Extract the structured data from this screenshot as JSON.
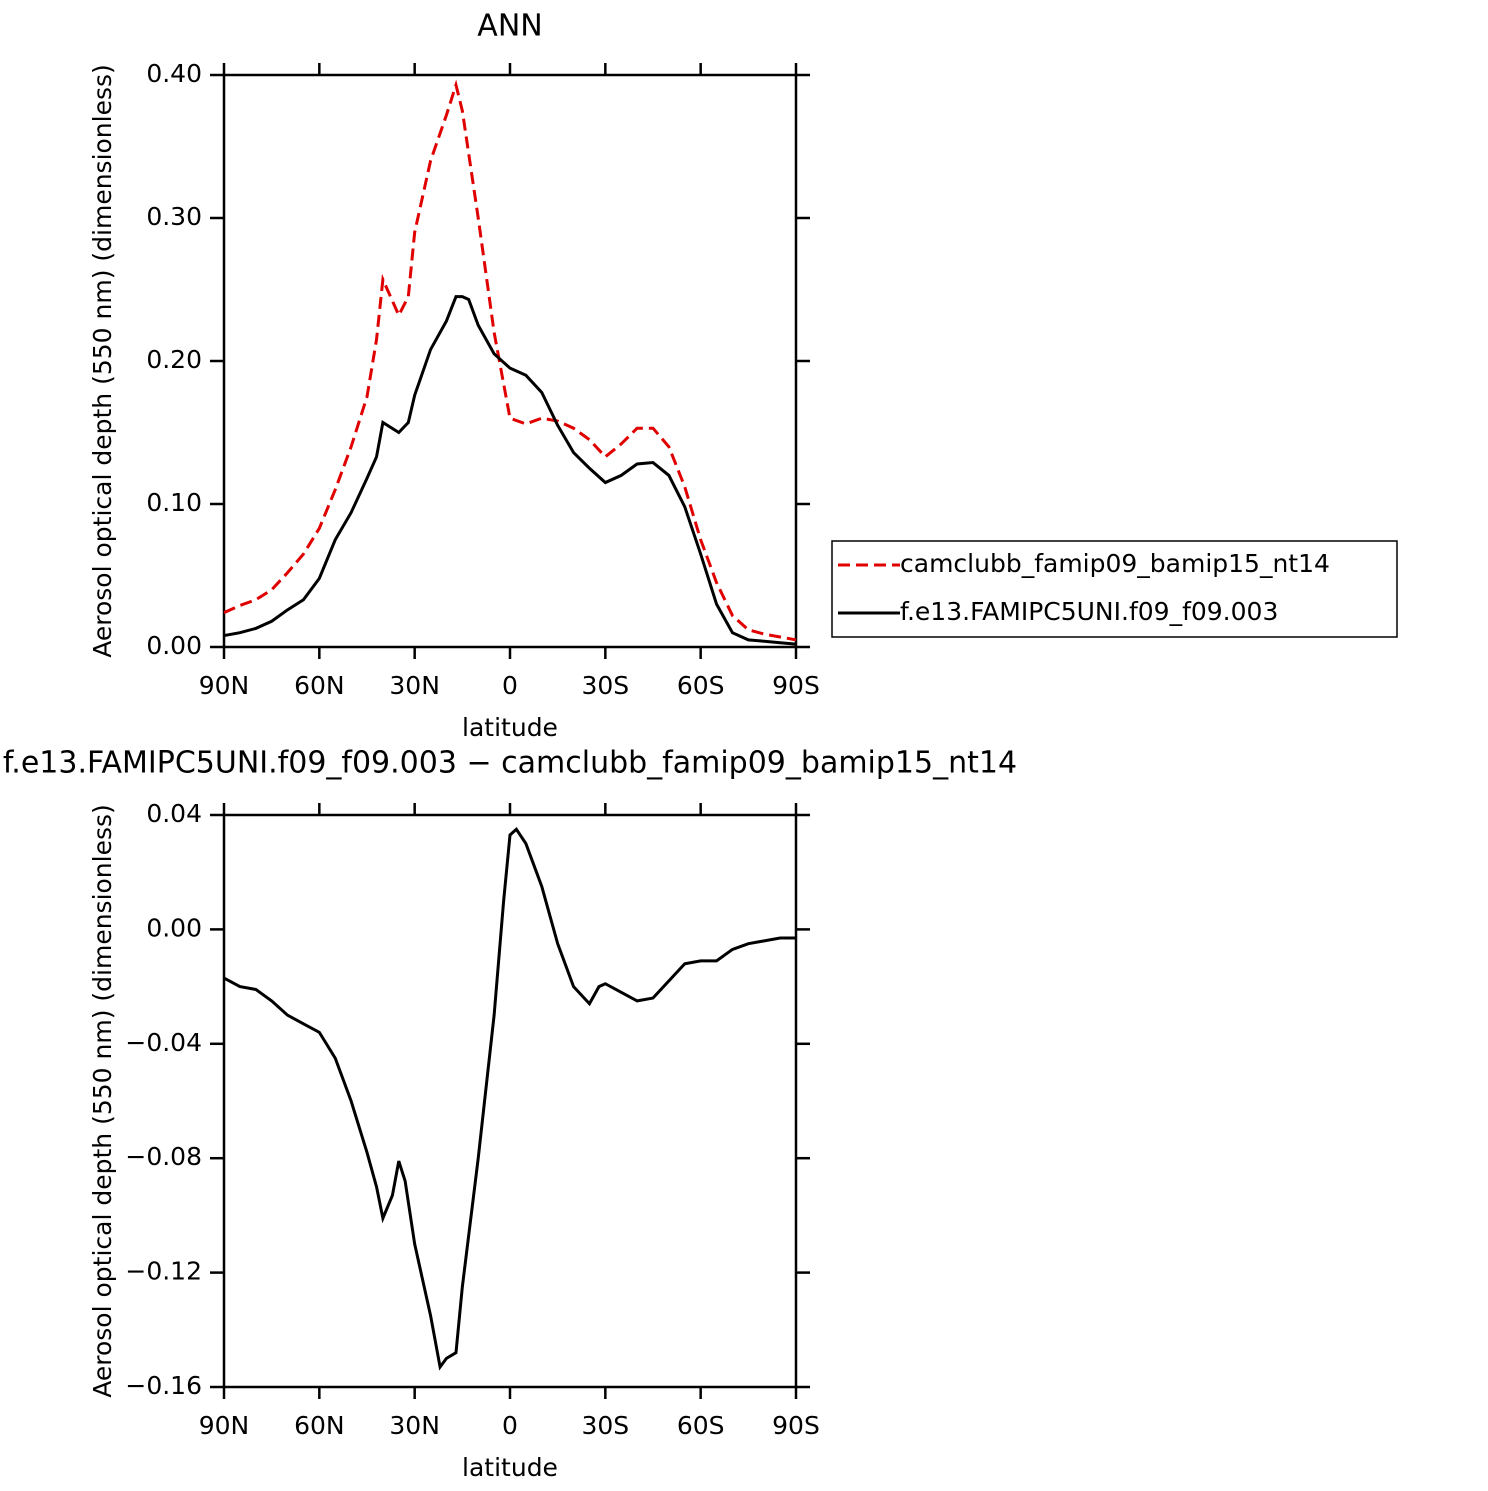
{
  "chart_data": [
    {
      "type": "line",
      "title": "ANN",
      "x_label": "latitude",
      "y_label": "Aerosol optical depth (550 nm) (dimensionless)",
      "x": [
        90,
        85,
        80,
        75,
        70,
        65,
        60,
        55,
        50,
        45,
        42,
        40,
        35,
        32,
        30,
        25,
        20,
        17,
        15,
        13,
        10,
        5,
        0,
        -5,
        -10,
        -15,
        -20,
        -25,
        -30,
        -35,
        -40,
        -45,
        -50,
        -55,
        -60,
        -65,
        -70,
        -75,
        -80,
        -85,
        -90
      ],
      "series": [
        {
          "name": "camclubb_famip09_bamip15_nt14",
          "color": "#e00000",
          "line_style": "dashed",
          "values": [
            0.024,
            0.029,
            0.033,
            0.04,
            0.052,
            0.065,
            0.083,
            0.11,
            0.14,
            0.175,
            0.215,
            0.257,
            0.232,
            0.245,
            0.29,
            0.34,
            0.372,
            0.393,
            0.375,
            0.345,
            0.3,
            0.22,
            0.16,
            0.156,
            0.16,
            0.158,
            0.153,
            0.145,
            0.133,
            0.142,
            0.153,
            0.153,
            0.14,
            0.112,
            0.075,
            0.045,
            0.022,
            0.012,
            0.009,
            0.007,
            0.005
          ]
        },
        {
          "name": "f.e13.FAMIPC5UNI.f09_f09.003",
          "color": "#000000",
          "line_style": "solid",
          "values": [
            0.008,
            0.01,
            0.013,
            0.018,
            0.026,
            0.033,
            0.048,
            0.075,
            0.094,
            0.118,
            0.133,
            0.157,
            0.15,
            0.157,
            0.176,
            0.208,
            0.228,
            0.245,
            0.245,
            0.243,
            0.225,
            0.205,
            0.195,
            0.19,
            0.178,
            0.155,
            0.136,
            0.125,
            0.115,
            0.12,
            0.128,
            0.129,
            0.12,
            0.098,
            0.065,
            0.03,
            0.01,
            0.005,
            0.004,
            0.003,
            0.002
          ]
        }
      ],
      "xlim": [
        90,
        -90
      ],
      "xticks": [
        {
          "value": 90,
          "label": "90N"
        },
        {
          "value": 60,
          "label": "60N"
        },
        {
          "value": 30,
          "label": "30N"
        },
        0,
        {
          "value": -30,
          "label": "30S"
        },
        {
          "value": -60,
          "label": "60S"
        },
        {
          "value": -90,
          "label": "90S"
        }
      ],
      "ylim": [
        0,
        0.4
      ],
      "yticks": [
        {
          "value": 0,
          "label": "0.00"
        },
        {
          "value": 0.1,
          "label": "0.10"
        },
        {
          "value": 0.2,
          "label": "0.20"
        },
        {
          "value": 0.3,
          "label": "0.30"
        },
        {
          "value": 0.4,
          "label": "0.40"
        }
      ],
      "legend": "right"
    },
    {
      "type": "line",
      "title": "f.e13.FAMIPC5UNI.f09_f09.003 − camclubb_famip09_bamip15_nt14",
      "x_label": "latitude",
      "y_label": "Aerosol optical depth (550 nm) (dimensionless)",
      "x": [
        90,
        85,
        80,
        75,
        70,
        65,
        60,
        55,
        50,
        45,
        42,
        40,
        37,
        35,
        33,
        30,
        27,
        25,
        22,
        20,
        17,
        15,
        10,
        5,
        2,
        0,
        -2,
        -5,
        -10,
        -15,
        -20,
        -25,
        -28,
        -30,
        -35,
        -40,
        -45,
        -50,
        -55,
        -60,
        -65,
        -70,
        -75,
        -80,
        -85,
        -90
      ],
      "series": [
        {
          "color": "#000000",
          "line_style": "solid",
          "values": [
            -0.017,
            -0.02,
            -0.021,
            -0.025,
            -0.03,
            -0.033,
            -0.036,
            -0.045,
            -0.06,
            -0.078,
            -0.09,
            -0.101,
            -0.093,
            -0.081,
            -0.088,
            -0.11,
            -0.125,
            -0.135,
            -0.153,
            -0.15,
            -0.148,
            -0.125,
            -0.08,
            -0.03,
            0.01,
            0.033,
            0.035,
            0.03,
            0.015,
            -0.005,
            -0.02,
            -0.026,
            -0.02,
            -0.019,
            -0.022,
            -0.025,
            -0.024,
            -0.018,
            -0.012,
            -0.011,
            -0.011,
            -0.007,
            -0.005,
            -0.004,
            -0.003,
            -0.003
          ]
        }
      ],
      "xlim": [
        90,
        -90
      ],
      "xticks": [
        {
          "value": 90,
          "label": "90N"
        },
        {
          "value": 60,
          "label": "60N"
        },
        {
          "value": 30,
          "label": "30N"
        },
        0,
        {
          "value": -30,
          "label": "30S"
        },
        {
          "value": -60,
          "label": "60S"
        },
        {
          "value": -90,
          "label": "90S"
        }
      ],
      "ylim": [
        -0.16,
        0.04
      ],
      "yticks": [
        {
          "value": -0.16,
          "label": "−0.16"
        },
        {
          "value": -0.12,
          "label": "−0.12"
        },
        {
          "value": -0.08,
          "label": "−0.08"
        },
        {
          "value": -0.04,
          "label": "−0.04"
        },
        {
          "value": 0,
          "label": "0.00"
        },
        0.04
      ]
    }
  ]
}
